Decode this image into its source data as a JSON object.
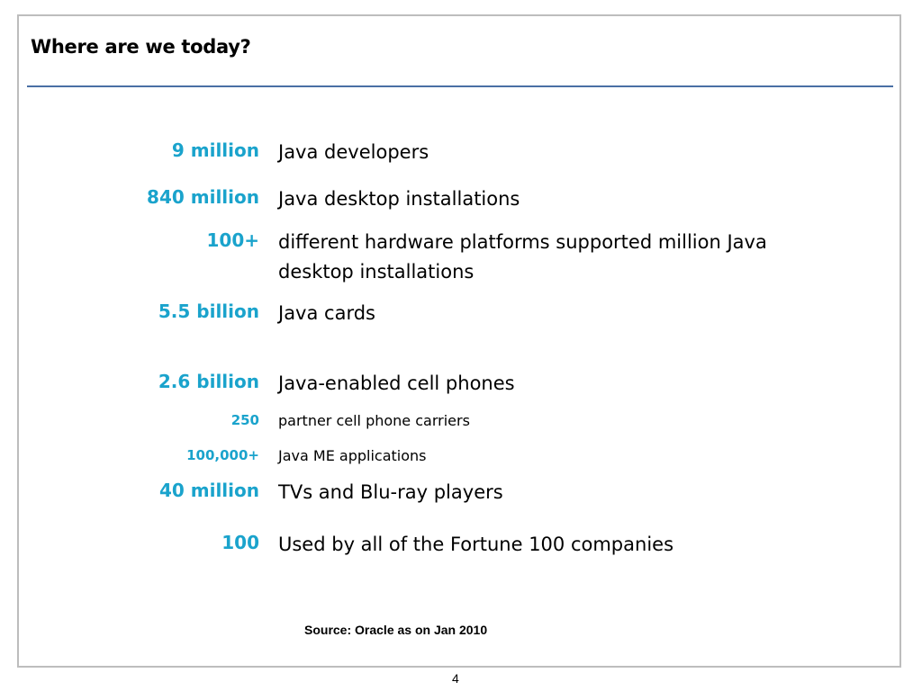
{
  "slide": {
    "title": "Where are we today?",
    "source": "Source: Oracle as on Jan 2010",
    "page_number": "4"
  },
  "stats": [
    {
      "value": "9 million",
      "description": "Java developers"
    },
    {
      "value": "840 million",
      "description": "Java desktop installations"
    },
    {
      "value": "100+",
      "description": "different hardware platforms supported million Java desktop installations"
    },
    {
      "value": "5.5 billion",
      "description": "Java cards"
    },
    {
      "value": "2.6 billion",
      "description": "Java-enabled cell phones"
    },
    {
      "value": "250",
      "description": "partner cell phone carriers"
    },
    {
      "value": "100,000+",
      "description": "Java ME applications"
    },
    {
      "value": "40 million",
      "description": "TVs and Blu-ray players"
    },
    {
      "value": "100",
      "description": "Used by all of the Fortune 100 companies"
    }
  ],
  "colors": {
    "accent": "#1aa3cc",
    "rule": "#4a6fa5",
    "frame": "#bdbdbd"
  }
}
